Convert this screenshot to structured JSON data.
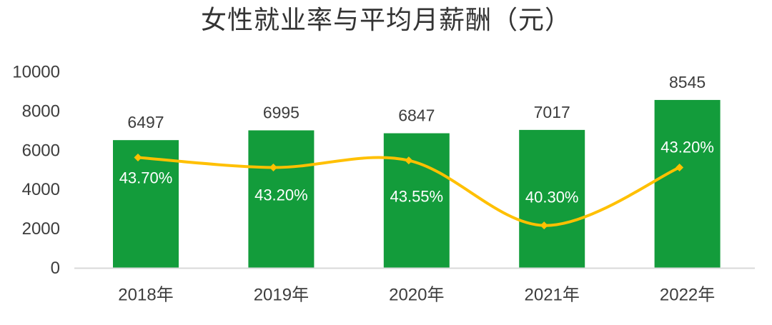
{
  "title": "女性就业率与平均月薪酬（元）",
  "chart_data": {
    "type": "combo",
    "title": "女性就业率与平均月薪酬（元）",
    "categories": [
      "2018年",
      "2019年",
      "2020年",
      "2021年",
      "2022年"
    ],
    "series": [
      {
        "name": "平均月薪酬（元）",
        "chart_type": "bar",
        "values": [
          6497,
          6995,
          6847,
          7017,
          8545
        ],
        "data_labels": [
          "6497",
          "6995",
          "6847",
          "7017",
          "8545"
        ],
        "color": "#139C3B",
        "label_color": "#3D3D3D"
      },
      {
        "name": "女性就业率",
        "chart_type": "line",
        "values": [
          43.7,
          43.2,
          43.55,
          40.3,
          43.2
        ],
        "data_labels": [
          "43.70%",
          "43.20%",
          "43.55%",
          "40.30%",
          "43.20%"
        ],
        "color": "#FFC000",
        "label_color": "#FFFFFF",
        "smooth": true,
        "marker": "diamond"
      }
    ],
    "y_axis": {
      "min": 0,
      "max": 10000,
      "tick_step": 2000,
      "tick_labels": [
        "0",
        "2000",
        "4000",
        "6000",
        "8000",
        "10000"
      ],
      "visible": true
    },
    "y2_axis": {
      "min": 38.2,
      "max": 48,
      "visible": false
    },
    "grid": false,
    "legend": "none",
    "axis_line_color": "#D9D9D9",
    "tick_label_color": "#3D3D3D"
  }
}
